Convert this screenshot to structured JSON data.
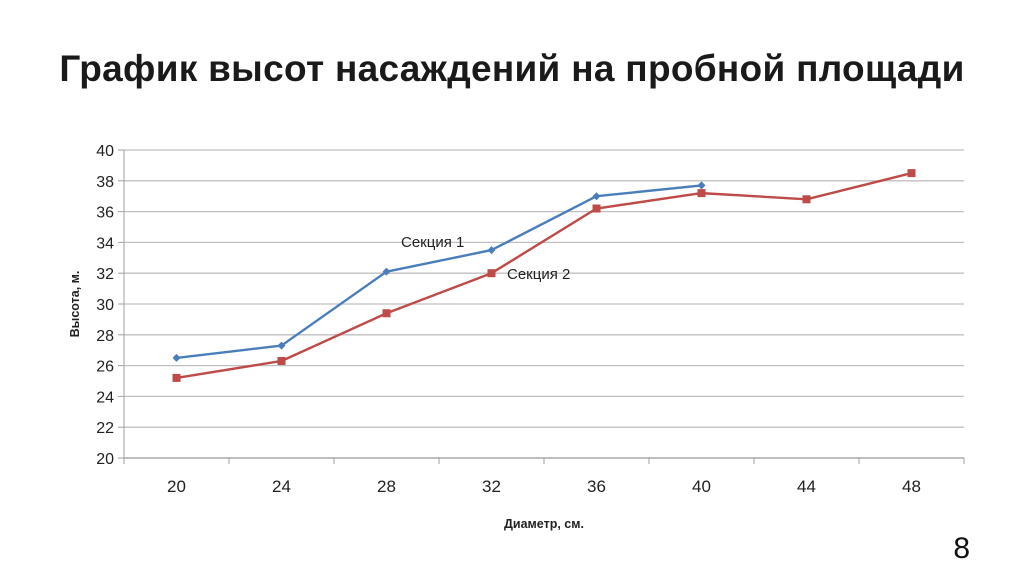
{
  "slide": {
    "title": "График высот насаждений на пробной площади",
    "page_number": "8"
  },
  "chart_data": {
    "type": "line",
    "title": "График высот насаждений на пробной площади",
    "xlabel": "Диаметр, см.",
    "ylabel": "Высота, м.",
    "categories": [
      "20",
      "24",
      "28",
      "32",
      "36",
      "40",
      "44",
      "48"
    ],
    "ylim": [
      20,
      40
    ],
    "yticks": [
      "20",
      "22",
      "24",
      "26",
      "28",
      "30",
      "32",
      "34",
      "36",
      "38",
      "40"
    ],
    "grid": true,
    "legend": "inline labels",
    "series": [
      {
        "name": "Секция 1",
        "color": "#4a7ebb",
        "marker": "diamond",
        "values": [
          26.5,
          27.3,
          32.1,
          33.5,
          37.0,
          37.7,
          null,
          null
        ]
      },
      {
        "name": "Секция 2",
        "color": "#be4b48",
        "marker": "square",
        "values": [
          25.2,
          26.3,
          29.4,
          32.0,
          36.2,
          37.2,
          36.8,
          38.5
        ]
      }
    ],
    "annotations": [
      {
        "text": "Секция 1",
        "series": 0
      },
      {
        "text": "Секция 2",
        "series": 1
      }
    ]
  }
}
